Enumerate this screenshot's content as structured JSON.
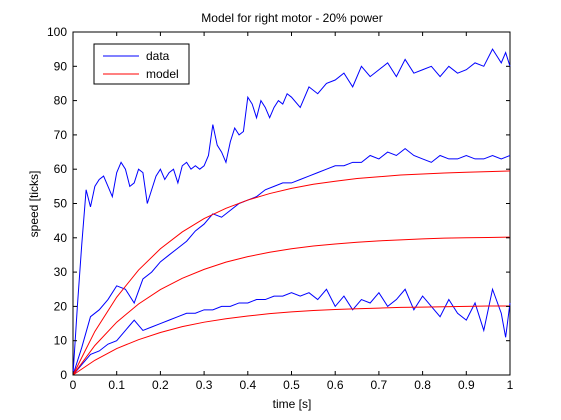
{
  "chart_data": {
    "type": "line",
    "title": "Model for right motor - 20% power",
    "xlabel": "time [s]",
    "ylabel": "speed [ticks]",
    "xlim": [
      0,
      1
    ],
    "ylim": [
      0,
      100
    ],
    "xticks": [
      0,
      0.1,
      0.2,
      0.3,
      0.4,
      0.5,
      0.6,
      0.7,
      0.8,
      0.9,
      1
    ],
    "xtick_labels": [
      "0",
      "0.1",
      "0.2",
      "0.3",
      "0.4",
      "0.5",
      "0.6",
      "0.7",
      "0.8",
      "0.9",
      "1"
    ],
    "yticks": [
      0,
      10,
      20,
      30,
      40,
      50,
      60,
      70,
      80,
      90,
      100
    ],
    "ytick_labels": [
      "0",
      "10",
      "20",
      "30",
      "40",
      "50",
      "60",
      "70",
      "80",
      "90",
      "100"
    ],
    "grid": false,
    "legend": {
      "location": "top-left",
      "entries": [
        {
          "label": "data",
          "color": "#0000ff"
        },
        {
          "label": "model",
          "color": "#ff0000"
        }
      ]
    },
    "series": [
      {
        "name": "data",
        "color": "#0000ff",
        "x": [
          0,
          0.01,
          0.02,
          0.03,
          0.04,
          0.05,
          0.06,
          0.07,
          0.08,
          0.09,
          0.1,
          0.11,
          0.12,
          0.13,
          0.14,
          0.15,
          0.16,
          0.17,
          0.18,
          0.19,
          0.2,
          0.21,
          0.22,
          0.23,
          0.24,
          0.25,
          0.26,
          0.27,
          0.28,
          0.29,
          0.3,
          0.31,
          0.32,
          0.33,
          0.34,
          0.35,
          0.36,
          0.37,
          0.38,
          0.39,
          0.4,
          0.41,
          0.42,
          0.43,
          0.44,
          0.45,
          0.46,
          0.47,
          0.48,
          0.49,
          0.5,
          0.52,
          0.54,
          0.56,
          0.58,
          0.6,
          0.62,
          0.64,
          0.66,
          0.68,
          0.7,
          0.72,
          0.74,
          0.76,
          0.78,
          0.8,
          0.82,
          0.84,
          0.86,
          0.88,
          0.9,
          0.92,
          0.94,
          0.96,
          0.97,
          0.98,
          0.99,
          1
        ],
        "y": [
          0,
          20,
          38,
          54,
          49,
          55,
          57,
          58,
          55,
          52,
          59,
          62,
          60,
          55,
          56,
          60,
          59,
          50,
          54,
          58,
          60,
          57,
          59,
          60,
          56,
          61,
          62,
          60,
          61,
          60,
          61,
          64,
          73,
          67,
          65,
          62,
          68,
          72,
          70,
          71,
          81,
          79,
          75,
          80,
          78,
          75,
          78,
          80,
          79,
          82,
          81,
          78,
          84,
          82,
          85,
          86,
          88,
          84,
          90,
          87,
          89,
          91,
          87,
          92,
          88,
          89,
          90,
          87,
          90,
          88,
          89,
          91,
          90,
          95,
          93,
          91,
          94,
          90
        ]
      },
      {
        "name": "data",
        "color": "#0000ff",
        "x": [
          0,
          0.02,
          0.04,
          0.06,
          0.08,
          0.1,
          0.12,
          0.14,
          0.16,
          0.18,
          0.2,
          0.22,
          0.24,
          0.26,
          0.28,
          0.3,
          0.32,
          0.34,
          0.36,
          0.38,
          0.4,
          0.42,
          0.44,
          0.46,
          0.48,
          0.5,
          0.52,
          0.54,
          0.56,
          0.58,
          0.6,
          0.62,
          0.64,
          0.66,
          0.68,
          0.7,
          0.72,
          0.74,
          0.76,
          0.78,
          0.8,
          0.82,
          0.84,
          0.86,
          0.88,
          0.9,
          0.92,
          0.94,
          0.96,
          0.98,
          1
        ],
        "y": [
          0,
          8,
          17,
          19,
          22,
          26,
          25,
          21,
          28,
          30,
          33,
          35,
          37,
          39,
          42,
          44,
          47,
          46,
          48,
          50,
          51,
          52,
          54,
          55,
          56,
          56,
          57,
          58,
          59,
          60,
          61,
          61,
          62,
          62,
          64,
          63,
          65,
          64,
          66,
          64,
          63,
          62,
          64,
          63,
          63,
          64,
          63,
          63,
          64,
          63,
          64
        ]
      },
      {
        "name": "data",
        "color": "#0000ff",
        "x": [
          0,
          0.02,
          0.04,
          0.06,
          0.08,
          0.1,
          0.12,
          0.14,
          0.16,
          0.18,
          0.2,
          0.22,
          0.24,
          0.26,
          0.28,
          0.3,
          0.32,
          0.34,
          0.36,
          0.38,
          0.4,
          0.42,
          0.44,
          0.46,
          0.48,
          0.5,
          0.52,
          0.54,
          0.56,
          0.58,
          0.6,
          0.62,
          0.64,
          0.66,
          0.68,
          0.7,
          0.72,
          0.74,
          0.76,
          0.78,
          0.8,
          0.82,
          0.84,
          0.86,
          0.88,
          0.9,
          0.92,
          0.94,
          0.96,
          0.98,
          0.99,
          1
        ],
        "y": [
          0,
          3,
          6,
          7,
          9,
          10,
          13,
          16,
          13,
          14,
          15,
          16,
          17,
          18,
          18,
          19,
          19,
          20,
          20,
          21,
          21,
          22,
          22,
          23,
          23,
          24,
          23,
          24,
          22,
          25,
          20,
          23,
          19,
          22,
          21,
          24,
          20,
          22,
          25,
          19,
          23,
          20,
          17,
          22,
          18,
          16,
          21,
          13,
          25,
          18,
          11,
          21
        ]
      },
      {
        "name": "model",
        "color": "#ff0000",
        "x": [
          0,
          0.05,
          0.1,
          0.15,
          0.2,
          0.25,
          0.3,
          0.35,
          0.4,
          0.45,
          0.5,
          0.55,
          0.6,
          0.65,
          0.7,
          0.75,
          0.8,
          0.85,
          0.9,
          0.95,
          1
        ],
        "y": [
          0,
          12.7,
          22.7,
          30.6,
          36.8,
          41.7,
          45.6,
          48.6,
          51.0,
          52.9,
          54.4,
          55.6,
          56.5,
          57.3,
          57.8,
          58.3,
          58.6,
          58.9,
          59.1,
          59.3,
          59.5
        ]
      },
      {
        "name": "model",
        "color": "#ff0000",
        "x": [
          0,
          0.05,
          0.1,
          0.15,
          0.2,
          0.25,
          0.3,
          0.35,
          0.4,
          0.45,
          0.5,
          0.55,
          0.6,
          0.65,
          0.7,
          0.75,
          0.8,
          0.85,
          0.9,
          0.95,
          1
        ],
        "y": [
          0,
          8.6,
          15.4,
          20.7,
          24.9,
          28.2,
          30.8,
          32.9,
          34.5,
          35.8,
          36.8,
          37.6,
          38.2,
          38.7,
          39.1,
          39.4,
          39.7,
          39.9,
          40.0,
          40.1,
          40.2
        ]
      },
      {
        "name": "model",
        "color": "#ff0000",
        "x": [
          0,
          0.05,
          0.1,
          0.15,
          0.2,
          0.25,
          0.3,
          0.35,
          0.4,
          0.45,
          0.5,
          0.55,
          0.6,
          0.65,
          0.7,
          0.75,
          0.8,
          0.85,
          0.9,
          0.95,
          1
        ],
        "y": [
          0,
          4.3,
          7.7,
          10.3,
          12.4,
          14.1,
          15.4,
          16.4,
          17.2,
          17.9,
          18.4,
          18.8,
          19.1,
          19.3,
          19.5,
          19.7,
          19.8,
          19.9,
          20.0,
          20.1,
          20.1
        ]
      }
    ]
  }
}
